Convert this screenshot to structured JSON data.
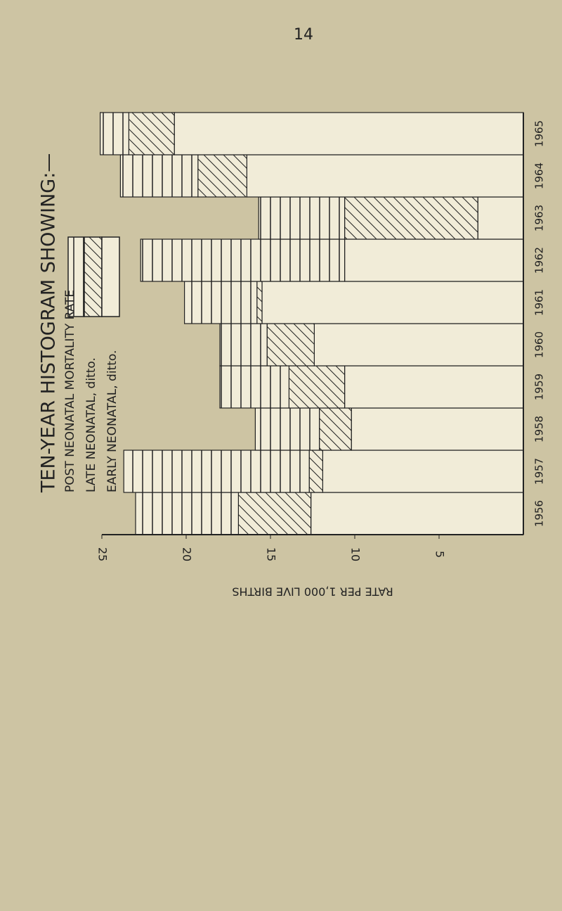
{
  "page_number": "14",
  "chart_data": {
    "type": "stacked-hbar",
    "title": "TEN-YEAR HISTOGRAM SHOWING:—",
    "x_label": "RATE PER 1,000 LIVE BIRTHS",
    "categories": [
      "1956",
      "1957",
      "1958",
      "1959",
      "1960",
      "1961",
      "1962",
      "1963",
      "1964",
      "1965"
    ],
    "series": [
      {
        "name": "POST NEONATAL MORTALITY RATE",
        "color": "#222222",
        "hatch": "vertical",
        "values": [
          6.1,
          11.0,
          3.8,
          4.1,
          2.8,
          4.3,
          12.1,
          5.1,
          4.6,
          1.7
        ]
      },
      {
        "name": "LATE NEONATAL, ditto.",
        "color": "#222222",
        "hatch": "diagonal",
        "values": [
          4.3,
          0.8,
          1.9,
          3.3,
          2.8,
          0.3,
          0,
          7.9,
          2.9,
          2.7
        ]
      },
      {
        "name": "EARLY NEONATAL, ditto.",
        "color": "#222222",
        "hatch": "none",
        "values": [
          12.6,
          11.9,
          10.2,
          10.6,
          12.4,
          15.5,
          10.6,
          2.7,
          16.4,
          20.7
        ]
      }
    ],
    "xlim": [
      0,
      25
    ],
    "xticks": [
      5,
      10,
      15,
      20,
      25
    ],
    "x_reversed": true
  }
}
